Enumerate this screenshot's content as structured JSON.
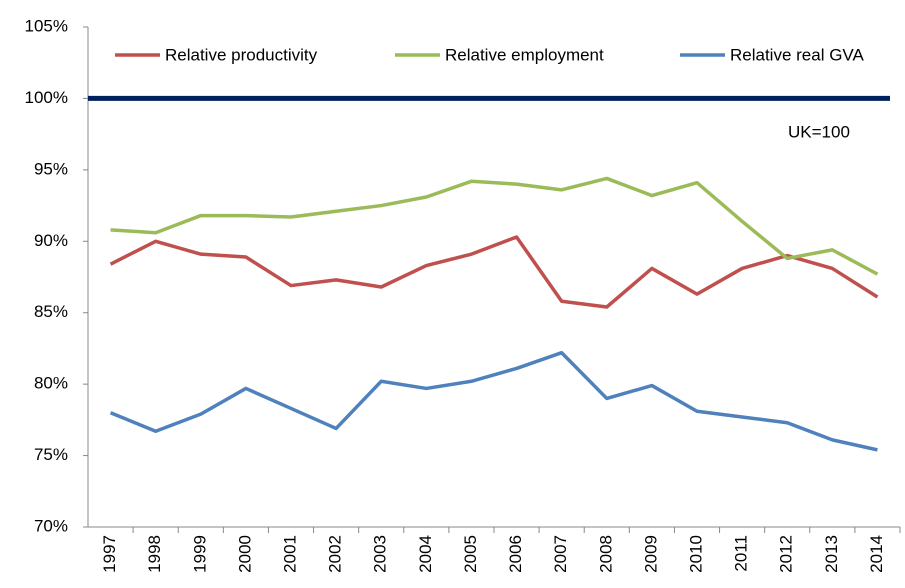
{
  "chart_data": {
    "type": "line",
    "categories": [
      "1997",
      "1998",
      "1999",
      "2000",
      "2001",
      "2002",
      "2003",
      "2004",
      "2005",
      "2006",
      "2007",
      "2008",
      "2009",
      "2010",
      "2011",
      "2012",
      "2013",
      "2014"
    ],
    "series": [
      {
        "name": "Relative productivity",
        "color": "#c0504d",
        "values": [
          88.4,
          90.0,
          89.1,
          88.9,
          86.9,
          87.3,
          86.8,
          88.3,
          89.1,
          90.3,
          85.8,
          85.4,
          88.1,
          86.3,
          88.1,
          89.0,
          88.1,
          86.1
        ]
      },
      {
        "name": "Relative employment",
        "color": "#9bbb59",
        "values": [
          90.8,
          90.6,
          91.8,
          91.8,
          91.7,
          92.1,
          92.5,
          93.1,
          94.2,
          94.0,
          93.6,
          94.4,
          93.2,
          94.1,
          91.4,
          88.8,
          89.4,
          87.7
        ]
      },
      {
        "name": "Relative real GVA",
        "color": "#4f81bd",
        "values": [
          78.0,
          76.7,
          77.9,
          79.7,
          78.3,
          76.9,
          80.2,
          79.7,
          80.2,
          81.1,
          82.2,
          79.0,
          79.9,
          78.1,
          77.7,
          77.3,
          76.1,
          75.4
        ]
      }
    ],
    "reference_line": {
      "value": 100,
      "color": "#002060"
    },
    "annotation": "UK=100",
    "ylim": [
      70,
      105
    ],
    "yticks": [
      {
        "value": 70,
        "label": "70%"
      },
      {
        "value": 75,
        "label": "75%"
      },
      {
        "value": 80,
        "label": "80%"
      },
      {
        "value": 85,
        "label": "85%"
      },
      {
        "value": 90,
        "label": "90%"
      },
      {
        "value": 95,
        "label": "95%"
      },
      {
        "value": 100,
        "label": "100%"
      },
      {
        "value": 105,
        "label": "105%"
      }
    ],
    "grid": false,
    "legend": "top"
  }
}
